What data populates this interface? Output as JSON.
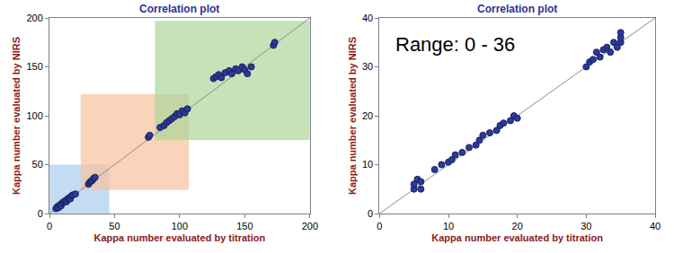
{
  "chart_data": [
    {
      "type": "scatter",
      "title": "Correlation plot",
      "x_label": "Kappa number evaluated by titration",
      "y_label": "Kappa number evaluated by NIRS",
      "xlim": [
        0,
        200
      ],
      "ylim": [
        0,
        200
      ],
      "xticks": [
        0,
        50,
        100,
        150,
        200
      ],
      "yticks": [
        0,
        50,
        100,
        150,
        200
      ],
      "grid": false,
      "regions": [
        {
          "xlim": [
            0,
            46
          ],
          "ylim": [
            0,
            50
          ],
          "color": "#a9cdef"
        },
        {
          "xlim": [
            24,
            107
          ],
          "ylim": [
            24,
            122
          ],
          "color": "#f7c29c"
        },
        {
          "xlim": [
            81,
            200
          ],
          "ylim": [
            75,
            197
          ],
          "color": "#acd69a"
        }
      ],
      "series": [
        {
          "type": "scatter",
          "marker": "circle",
          "color": "#2b3a9b",
          "x": [
            5,
            6,
            7,
            8,
            9,
            10,
            11,
            12,
            13,
            14,
            15,
            16,
            17,
            18,
            20,
            30,
            31,
            32,
            33,
            34,
            35,
            76,
            77,
            85,
            88,
            90,
            92,
            94,
            96,
            98,
            100,
            102,
            104,
            106,
            126,
            128,
            130,
            132,
            135,
            138,
            140,
            143,
            145,
            148,
            150,
            152,
            155,
            172,
            173
          ],
          "values": [
            5,
            7,
            6,
            9,
            8,
            11,
            12,
            13,
            12,
            15,
            16,
            15,
            18,
            19,
            20,
            30,
            32,
            33,
            34,
            36,
            37,
            78,
            80,
            88,
            90,
            93,
            95,
            97,
            99,
            102,
            101,
            105,
            103,
            107,
            138,
            140,
            142,
            139,
            144,
            146,
            143,
            148,
            146,
            150,
            147,
            143,
            150,
            172,
            175
          ]
        },
        {
          "type": "line",
          "line_style": "solid",
          "color": "#8c8c8c",
          "x": [
            0,
            200
          ],
          "values": [
            0,
            200
          ]
        }
      ]
    },
    {
      "type": "scatter",
      "title": "Correlation plot",
      "x_label": "Kappa number evaluated by titration",
      "y_label": "Kappa number evaluated by NIRS",
      "annotations": [
        "Range: 0 - 36"
      ],
      "xlim": [
        0,
        40
      ],
      "ylim": [
        0,
        40
      ],
      "xticks": [
        0,
        10,
        20,
        30,
        40
      ],
      "yticks": [
        0,
        10,
        20,
        30,
        40
      ],
      "grid": false,
      "series": [
        {
          "type": "scatter",
          "marker": "circle",
          "color": "#2b3a9b",
          "x": [
            5,
            5,
            5.5,
            6,
            6,
            8,
            9,
            10,
            10.5,
            11,
            12,
            13,
            14,
            14.5,
            15,
            16,
            17,
            17.5,
            18,
            19,
            19.5,
            20,
            30,
            30.5,
            31,
            31.5,
            32,
            32.5,
            33,
            33.5,
            34,
            34.5,
            35,
            35,
            35
          ],
          "values": [
            5,
            6,
            7,
            5,
            6.5,
            9,
            10,
            10.5,
            11,
            12,
            12.5,
            13.5,
            14,
            15,
            16,
            16.5,
            17,
            18,
            18.5,
            19,
            20,
            19.5,
            30,
            31,
            31.5,
            33,
            32,
            33.5,
            34,
            33,
            35,
            34,
            35,
            36,
            37
          ]
        },
        {
          "type": "line",
          "line_style": "solid",
          "color": "#8c8c8c",
          "x": [
            0,
            40
          ],
          "values": [
            0,
            40
          ]
        }
      ]
    }
  ]
}
